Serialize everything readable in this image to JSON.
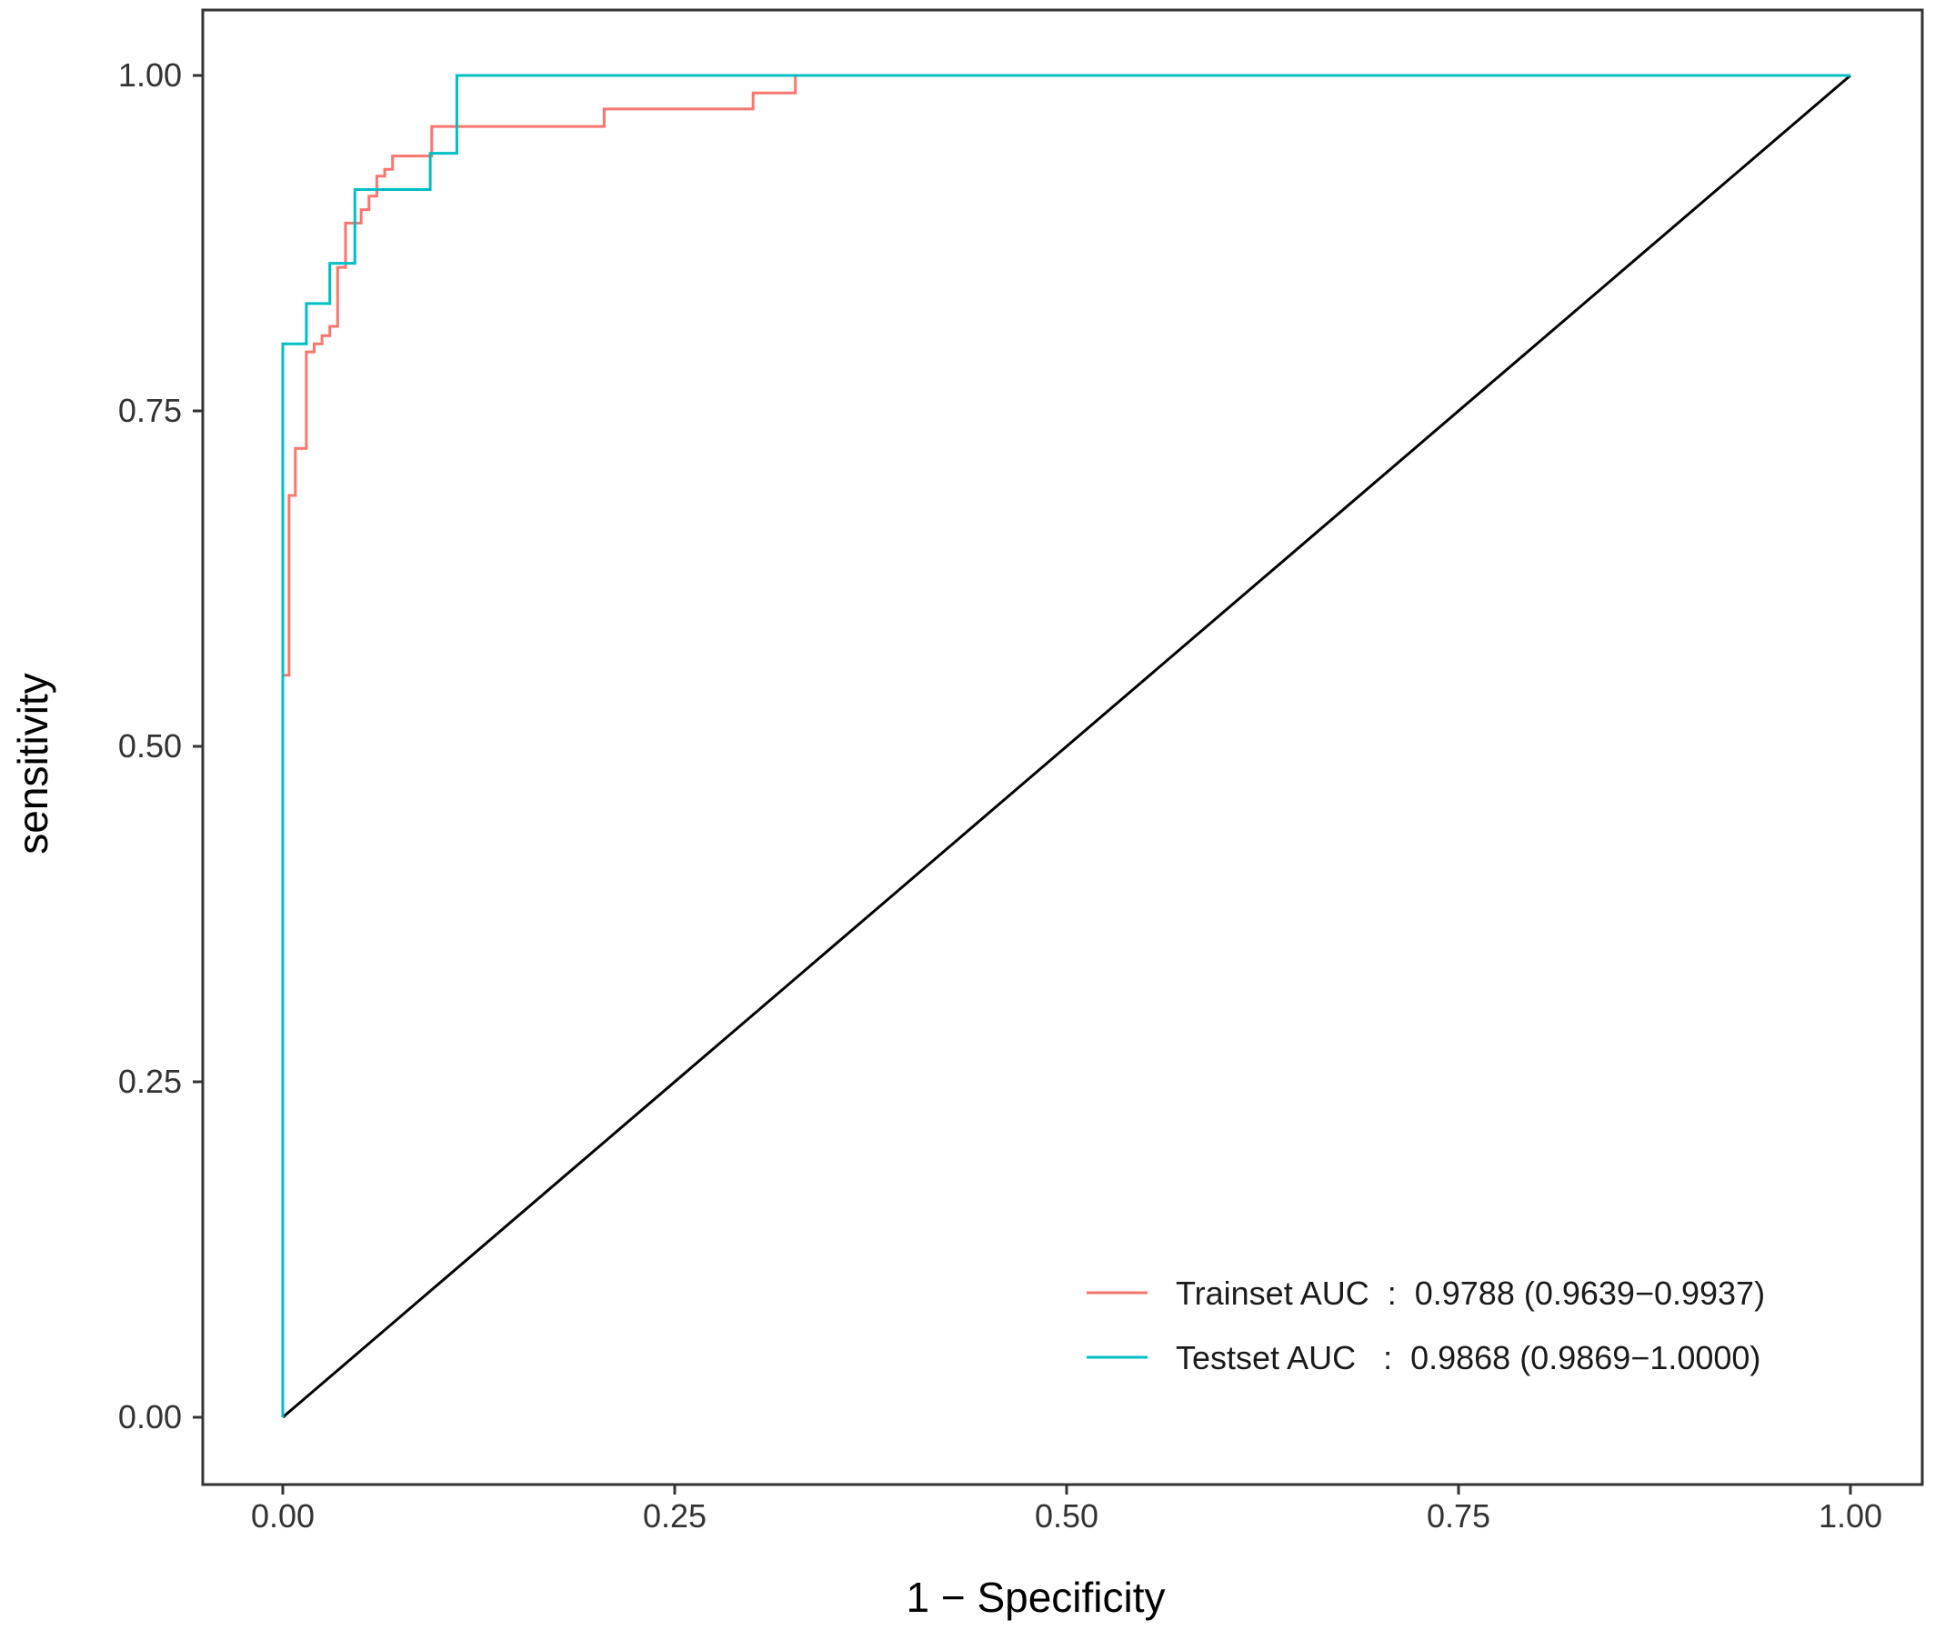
{
  "chart_data": {
    "type": "line",
    "title": "",
    "xlabel": "1 − Specificity",
    "ylabel": "sensitivity",
    "xlim": [
      -0.05,
      1.04
    ],
    "ylim": [
      -0.05,
      1.05
    ],
    "x_ticks": [
      "0.00",
      "0.25",
      "0.50",
      "0.75",
      "1.00"
    ],
    "y_ticks": [
      "0.00",
      "0.25",
      "0.50",
      "0.75",
      "1.00"
    ],
    "grid": false,
    "legend_position": "bottom-right",
    "series": [
      {
        "name": "Trainset AUC",
        "legend_label": "Trainset AUC  :  0.9788 (0.9639−0.9937)",
        "color": "#F8766D",
        "x": [
          0,
          0,
          0.004,
          0.004,
          0.008,
          0.008,
          0.015,
          0.015,
          0.02,
          0.02,
          0.025,
          0.025,
          0.03,
          0.03,
          0.035,
          0.035,
          0.04,
          0.04,
          0.05,
          0.05,
          0.055,
          0.055,
          0.06,
          0.06,
          0.065,
          0.065,
          0.07,
          0.07,
          0.095,
          0.095,
          0.205,
          0.205,
          0.3,
          0.3,
          0.327,
          0.327,
          1.0
        ],
        "y": [
          0,
          0.553,
          0.553,
          0.687,
          0.687,
          0.722,
          0.722,
          0.794,
          0.794,
          0.8,
          0.8,
          0.806,
          0.806,
          0.813,
          0.813,
          0.857,
          0.857,
          0.89,
          0.89,
          0.9,
          0.9,
          0.91,
          0.91,
          0.925,
          0.925,
          0.93,
          0.93,
          0.94,
          0.94,
          0.962,
          0.962,
          0.975,
          0.975,
          0.987,
          0.987,
          1.0,
          1.0
        ]
      },
      {
        "name": "Testset AUC",
        "legend_label": "Testset AUC   :  0.9868 (0.9869−1.0000)",
        "color": "#00BFC4",
        "x": [
          0,
          0,
          0.015,
          0.015,
          0.03,
          0.03,
          0.046,
          0.046,
          0.094,
          0.094,
          0.111,
          0.111,
          1.0
        ],
        "y": [
          0,
          0.8,
          0.8,
          0.83,
          0.83,
          0.86,
          0.86,
          0.915,
          0.915,
          0.942,
          0.942,
          1.0,
          1.0
        ]
      }
    ],
    "reference_line": {
      "x": [
        0,
        1
      ],
      "y": [
        0,
        1
      ],
      "color": "#000000"
    }
  }
}
